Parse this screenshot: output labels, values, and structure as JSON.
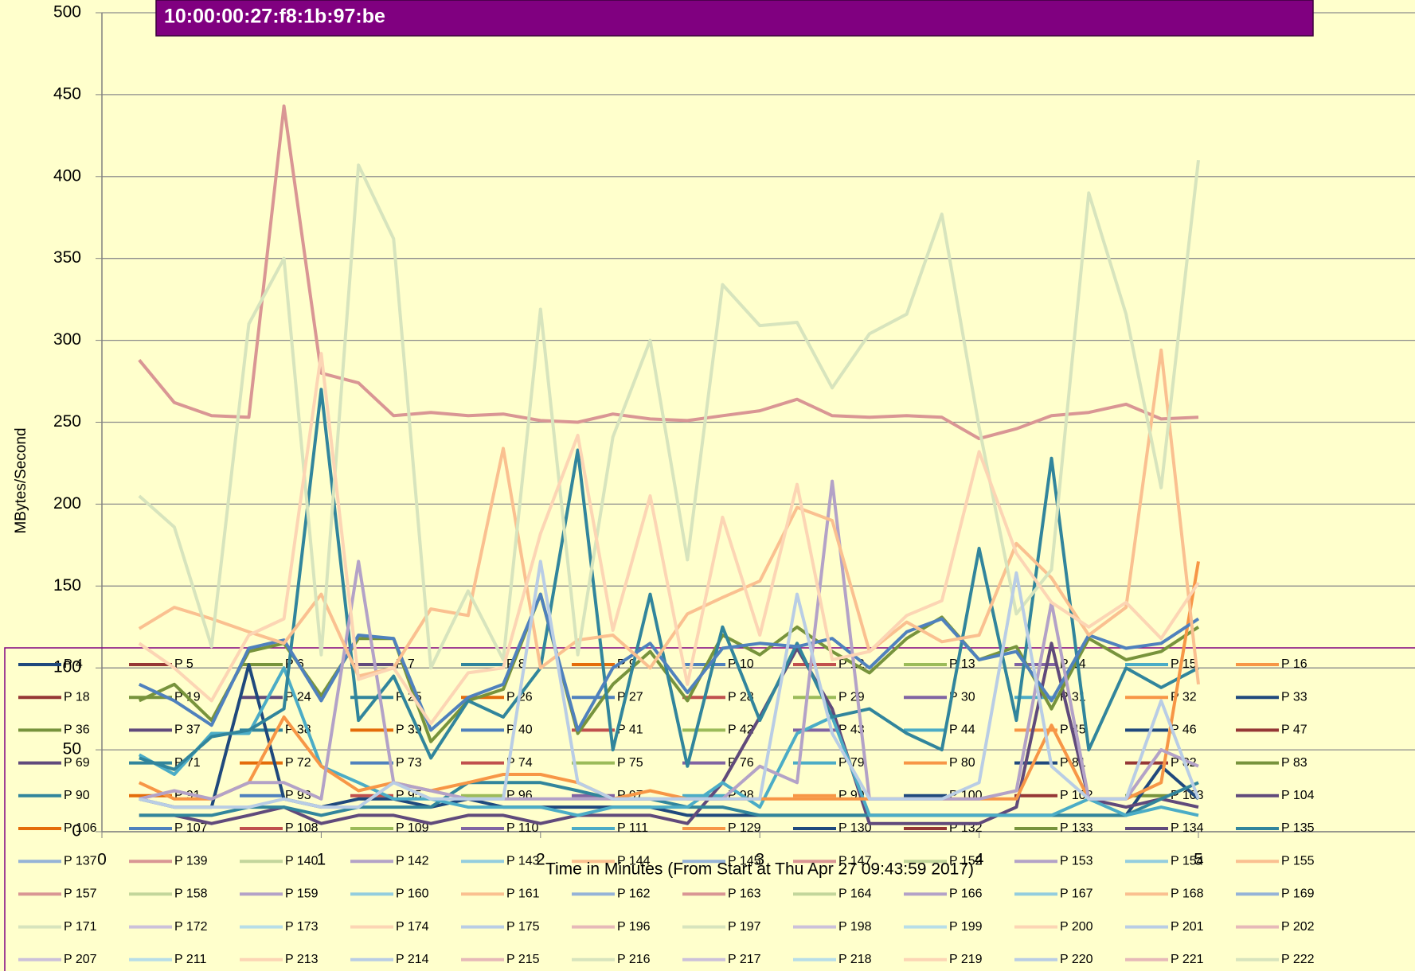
{
  "chart_data": {
    "type": "line",
    "title": "10:00:00:27:f8:1b:97:be",
    "y_label": "MBytes/Second",
    "x_label": "Time in Minutes (From Start at Thu Apr 27 09:43:59 2017)",
    "xlim": [
      0,
      6
    ],
    "xticks": [
      0,
      1,
      2,
      3,
      4,
      5
    ],
    "ylim": [
      0,
      500
    ],
    "yticks": [
      0,
      50,
      100,
      150,
      200,
      250,
      300,
      350,
      400,
      450,
      500
    ],
    "grid": true,
    "legend": "bottom",
    "x": [
      0.17,
      0.33,
      0.5,
      0.67,
      0.83,
      1,
      1.17,
      1.33,
      1.5,
      1.67,
      1.83,
      2,
      2.17,
      2.33,
      2.5,
      2.67,
      2.83,
      3,
      3.17,
      3.33,
      3.5,
      3.67,
      3.83,
      4,
      4.17,
      4.33,
      4.5,
      4.67,
      4.83,
      5
    ],
    "series": [
      {
        "name": "P 4",
        "color": "#1f497d",
        "values": [
          20,
          15,
          15,
          102,
          20,
          15,
          20,
          20,
          15,
          20,
          15,
          15,
          15,
          15,
          15,
          10,
          10,
          10,
          10,
          10,
          10,
          10,
          10,
          10,
          10,
          10,
          10,
          10,
          40,
          20
        ]
      },
      {
        "name": "P 5",
        "color": "#953735"
      },
      {
        "name": "P 6",
        "color": "#77933c"
      },
      {
        "name": "P 7",
        "color": "#604a7b",
        "values": [
          10,
          10,
          5,
          10,
          15,
          5,
          10,
          10,
          5,
          10,
          10,
          5,
          10,
          10,
          10,
          5,
          30,
          70,
          112,
          75,
          5,
          5,
          5,
          5,
          15,
          115,
          20,
          15,
          20,
          15
        ]
      },
      {
        "name": "P 8",
        "color": "#31859c",
        "values": [
          10,
          10,
          10,
          15,
          15,
          10,
          15,
          15,
          15,
          30,
          30,
          30,
          25,
          20,
          20,
          15,
          15,
          10,
          10,
          10,
          10,
          10,
          10,
          10,
          10,
          10,
          10,
          10,
          20,
          30
        ]
      },
      {
        "name": "P 9",
        "color": "#e46c0a"
      },
      {
        "name": "P 10",
        "color": "#4f81bd"
      },
      {
        "name": "P 12",
        "color": "#c0504d"
      },
      {
        "name": "P 13",
        "color": "#9bbb59"
      },
      {
        "name": "P 14",
        "color": "#8064a2"
      },
      {
        "name": "P 15",
        "color": "#4bacc6",
        "values": [
          47,
          35,
          60,
          60,
          100,
          40,
          30,
          20,
          20,
          15,
          15,
          15,
          10,
          15,
          15,
          15,
          30,
          15,
          60,
          70,
          10,
          10,
          10,
          10,
          10,
          10,
          20,
          10,
          15,
          10
        ]
      },
      {
        "name": "P 16",
        "color": "#f79646"
      },
      {
        "name": "P 18",
        "color": "#953735"
      },
      {
        "name": "P 19",
        "color": "#77933c",
        "values": [
          80,
          90,
          68,
          110,
          115,
          83,
          118,
          118,
          55,
          80,
          87,
          145,
          60,
          90,
          110,
          80,
          120,
          108,
          125,
          110,
          97,
          118,
          131,
          105,
          113,
          75,
          118,
          105,
          110,
          125
        ]
      },
      {
        "name": "P 24",
        "color": "#604a7b"
      },
      {
        "name": "P 25",
        "color": "#31859c",
        "values": [
          45,
          38,
          58,
          62,
          75,
          270,
          68,
          95,
          45,
          80,
          70,
          100,
          233,
          50,
          145,
          40,
          125,
          68,
          115,
          70,
          75,
          60,
          50,
          173,
          68,
          228,
          50,
          100,
          88,
          100
        ]
      },
      {
        "name": "P 26",
        "color": "#e46c0a"
      },
      {
        "name": "P 27",
        "color": "#4f81bd"
      },
      {
        "name": "P 28",
        "color": "#c0504d"
      },
      {
        "name": "P 29",
        "color": "#9bbb59"
      },
      {
        "name": "P 30",
        "color": "#8064a2"
      },
      {
        "name": "P 31",
        "color": "#4bacc6"
      },
      {
        "name": "P 32",
        "color": "#f79646",
        "values": [
          30,
          20,
          20,
          30,
          70,
          40,
          25,
          30,
          25,
          30,
          35,
          35,
          30,
          20,
          25,
          20,
          20,
          20,
          20,
          20,
          20,
          20,
          20,
          20,
          20,
          65,
          20,
          20,
          30,
          165
        ]
      },
      {
        "name": "P 33",
        "color": "#1f497d"
      },
      {
        "name": "P 36",
        "color": "#77933c"
      },
      {
        "name": "P 37",
        "color": "#604a7b"
      },
      {
        "name": "P 38",
        "color": "#31859c"
      },
      {
        "name": "P 39",
        "color": "#e46c0a"
      },
      {
        "name": "P 40",
        "color": "#4f81bd",
        "values": [
          90,
          80,
          65,
          112,
          117,
          80,
          120,
          118,
          62,
          82,
          90,
          145,
          62,
          100,
          115,
          85,
          112,
          115,
          113,
          118,
          100,
          122,
          130,
          105,
          110,
          80,
          120,
          112,
          115,
          130
        ]
      },
      {
        "name": "P 41",
        "color": "#c0504d"
      },
      {
        "name": "P 42",
        "color": "#9bbb59"
      },
      {
        "name": "P 43",
        "color": "#8064a2"
      },
      {
        "name": "P 44",
        "color": "#4bacc6"
      },
      {
        "name": "P 45",
        "color": "#f79646"
      },
      {
        "name": "P 46",
        "color": "#1f497d"
      },
      {
        "name": "P 47",
        "color": "#953735"
      },
      {
        "name": "P 69",
        "color": "#604a7b"
      },
      {
        "name": "P 71",
        "color": "#31859c"
      },
      {
        "name": "P 72",
        "color": "#e46c0a"
      },
      {
        "name": "P 73",
        "color": "#4f81bd"
      },
      {
        "name": "P 74",
        "color": "#c0504d"
      },
      {
        "name": "P 75",
        "color": "#9bbb59"
      },
      {
        "name": "P 76",
        "color": "#8064a2"
      },
      {
        "name": "P 79",
        "color": "#4bacc6"
      },
      {
        "name": "P 80",
        "color": "#f79646"
      },
      {
        "name": "P 81",
        "color": "#1f497d"
      },
      {
        "name": "P 82",
        "color": "#953735"
      },
      {
        "name": "P 83",
        "color": "#77933c"
      },
      {
        "name": "P 90",
        "color": "#31859c"
      },
      {
        "name": "P 91",
        "color": "#e46c0a"
      },
      {
        "name": "P 93",
        "color": "#4f81bd"
      },
      {
        "name": "P 95",
        "color": "#c0504d"
      },
      {
        "name": "P 96",
        "color": "#9bbb59"
      },
      {
        "name": "P 97",
        "color": "#8064a2"
      },
      {
        "name": "P 98",
        "color": "#4bacc6"
      },
      {
        "name": "P 99",
        "color": "#f79646"
      },
      {
        "name": "P 100",
        "color": "#1f497d"
      },
      {
        "name": "P 102",
        "color": "#953735"
      },
      {
        "name": "P 103",
        "color": "#77933c"
      },
      {
        "name": "P 104",
        "color": "#604a7b"
      },
      {
        "name": "P 106",
        "color": "#e46c0a"
      },
      {
        "name": "P 107",
        "color": "#4f81bd"
      },
      {
        "name": "P 108",
        "color": "#c0504d"
      },
      {
        "name": "P 109",
        "color": "#9bbb59"
      },
      {
        "name": "P 110",
        "color": "#8064a2"
      },
      {
        "name": "P 111",
        "color": "#4bacc6"
      },
      {
        "name": "P 129",
        "color": "#f79646"
      },
      {
        "name": "P 130",
        "color": "#1f497d"
      },
      {
        "name": "P 132",
        "color": "#953735"
      },
      {
        "name": "P 133",
        "color": "#77933c"
      },
      {
        "name": "P 134",
        "color": "#604a7b"
      },
      {
        "name": "P 135",
        "color": "#31859c"
      },
      {
        "name": "P 137",
        "color": "#95b3d7"
      },
      {
        "name": "P 139",
        "color": "#d99694"
      },
      {
        "name": "P 140",
        "color": "#c3d69b"
      },
      {
        "name": "P 142",
        "color": "#b3a2c7"
      },
      {
        "name": "P 143",
        "color": "#93cdde"
      },
      {
        "name": "P 144",
        "color": "#fac090"
      },
      {
        "name": "P 145",
        "color": "#95b3d7"
      },
      {
        "name": "P 147",
        "color": "#d99694"
      },
      {
        "name": "P 152",
        "color": "#c3d69b"
      },
      {
        "name": "P 153",
        "color": "#b3a2c7"
      },
      {
        "name": "P 154",
        "color": "#93cdde"
      },
      {
        "name": "P 155",
        "color": "#fac090"
      },
      {
        "name": "P 157",
        "color": "#d99694",
        "values": [
          288,
          262,
          254,
          253,
          443,
          280,
          274,
          254,
          256,
          254,
          255,
          251,
          250,
          255,
          252,
          251,
          254,
          257,
          264,
          254,
          253,
          254,
          253,
          240,
          246,
          254,
          256,
          261,
          252,
          253
        ]
      },
      {
        "name": "P 158",
        "color": "#c3d69b"
      },
      {
        "name": "P 159",
        "color": "#b3a2c7",
        "values": [
          20,
          25,
          20,
          30,
          30,
          20,
          165,
          30,
          25,
          20,
          20,
          20,
          20,
          20,
          20,
          20,
          20,
          40,
          30,
          214,
          20,
          20,
          20,
          20,
          25,
          140,
          20,
          20,
          50,
          40
        ]
      },
      {
        "name": "P 160",
        "color": "#93cdde"
      },
      {
        "name": "P 161",
        "color": "#fac090"
      },
      {
        "name": "P 162",
        "color": "#95b3d7"
      },
      {
        "name": "P 163",
        "color": "#d99694"
      },
      {
        "name": "P 164",
        "color": "#c3d69b"
      },
      {
        "name": "P 166",
        "color": "#b3a2c7"
      },
      {
        "name": "P 167",
        "color": "#93cdde"
      },
      {
        "name": "P 168",
        "color": "#fac090",
        "values": [
          124,
          137,
          130,
          122,
          115,
          145,
          95,
          100,
          136,
          132,
          234,
          100,
          117,
          120,
          100,
          133,
          143,
          153,
          198,
          190,
          110,
          128,
          116,
          120,
          176,
          155,
          120,
          137,
          294,
          90
        ]
      },
      {
        "name": "P 169",
        "color": "#95b3d7"
      },
      {
        "name": "P 171",
        "color": "#d7e4bd",
        "values": [
          205,
          186,
          113,
          310,
          350,
          108,
          407,
          362,
          100,
          147,
          105,
          319,
          108,
          241,
          300,
          166,
          334,
          309,
          311,
          271,
          304,
          316,
          377,
          247,
          133,
          160,
          390,
          316,
          210,
          410
        ]
      },
      {
        "name": "P 172",
        "color": "#ccc1da"
      },
      {
        "name": "P 173",
        "color": "#b7dee8"
      },
      {
        "name": "P 174",
        "color": "#fcd5b4",
        "values": [
          115,
          100,
          80,
          120,
          130,
          292,
          93,
          100,
          66,
          97,
          100,
          182,
          242,
          123,
          205,
          90,
          192,
          120,
          212,
          105,
          110,
          132,
          141,
          232,
          170,
          140,
          125,
          140,
          118,
          152
        ]
      },
      {
        "name": "P 175",
        "color": "#b9cde5",
        "values": [
          20,
          15,
          15,
          15,
          20,
          15,
          15,
          30,
          20,
          20,
          20,
          165,
          30,
          20,
          20,
          20,
          20,
          20,
          145,
          60,
          20,
          20,
          20,
          30,
          158,
          40,
          20,
          20,
          80,
          20
        ]
      },
      {
        "name": "P 196",
        "color": "#e6b9b8"
      },
      {
        "name": "P 197",
        "color": "#d7e4bd"
      },
      {
        "name": "P 198",
        "color": "#ccc1da"
      },
      {
        "name": "P 199",
        "color": "#b7dee8"
      },
      {
        "name": "P 200",
        "color": "#fcd5b4"
      },
      {
        "name": "P 201",
        "color": "#b9cde5"
      },
      {
        "name": "P 202",
        "color": "#e6b9b8"
      },
      {
        "name": "P 207",
        "color": "#ccc1da"
      },
      {
        "name": "P 211",
        "color": "#b7dee8"
      },
      {
        "name": "P 213",
        "color": "#fcd5b4"
      },
      {
        "name": "P 214",
        "color": "#b9cde5"
      },
      {
        "name": "P 215",
        "color": "#e6b9b8"
      },
      {
        "name": "P 216",
        "color": "#d7e4bd"
      },
      {
        "name": "P 217",
        "color": "#ccc1da"
      },
      {
        "name": "P 218",
        "color": "#b7dee8"
      },
      {
        "name": "P 219",
        "color": "#fcd5b4"
      },
      {
        "name": "P 220",
        "color": "#b9cde5"
      },
      {
        "name": "P 221",
        "color": "#e6b9b8"
      },
      {
        "name": "P 222",
        "color": "#d7e4bd"
      }
    ]
  }
}
